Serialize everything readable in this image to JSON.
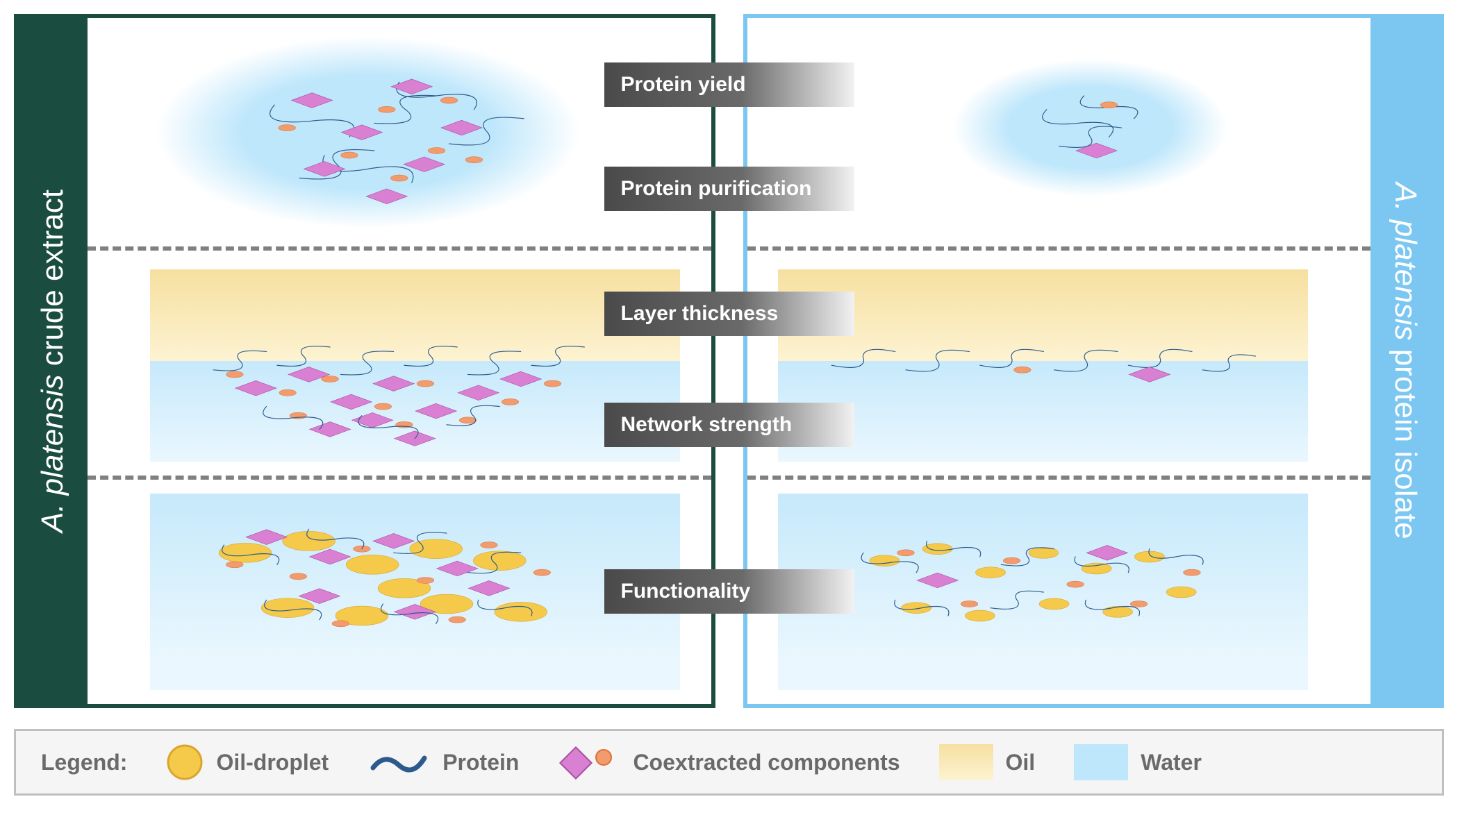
{
  "colors": {
    "left_border": "#1a4d3f",
    "right_border": "#7cc7f2",
    "water": "#bfe7fb",
    "water_light": "#eaf7fe",
    "oil_top": "#f6e0a0",
    "oil_bottom": "#fdf3d2",
    "protein": "#2d5a8c",
    "diamond_fill": "#d980d3",
    "diamond_stroke": "#a64fa0",
    "small_circle_fill": "#f29b6c",
    "small_circle_stroke": "#d9713a",
    "oil_droplet_fill": "#f5c94a",
    "oil_droplet_stroke": "#d9a52e",
    "label_grad_start": "#4a4a4a",
    "label_grad_mid": "#6a6a6a",
    "label_grad_end": "#f2f2f2",
    "divider": "#808080",
    "legend_bg": "#f5f5f5",
    "legend_border": "#bfbfbf",
    "legend_text": "#6a6a6a"
  },
  "left_panel": {
    "label_italic": "A. platensis",
    "label_plain": " crude extract"
  },
  "right_panel": {
    "label_italic": "A. platensis",
    "label_plain": " protein isolate"
  },
  "center_labels": [
    {
      "text": "Protein yield",
      "top_pct": 7
    },
    {
      "text": "Protein purification",
      "top_pct": 22
    },
    {
      "text": "Layer thickness",
      "top_pct": 40
    },
    {
      "text": "Network strength",
      "top_pct": 56
    },
    {
      "text": "Functionality",
      "top_pct": 80
    }
  ],
  "legend": {
    "title": "Legend:",
    "items": [
      {
        "key": "oil-droplet",
        "label": "Oil-droplet"
      },
      {
        "key": "protein",
        "label": "Protein"
      },
      {
        "key": "coextracted",
        "label": "Coextracted components"
      },
      {
        "key": "oil",
        "label": "Oil"
      },
      {
        "key": "water",
        "label": "Water"
      }
    ]
  },
  "shapes": {
    "protein_stroke_width": 7,
    "diamond_size": 42,
    "small_circle_r": 11,
    "oil_droplet_r": 38
  },
  "panels": {
    "left": {
      "top_ellipse": {
        "cx_pct": 45,
        "cy_pct": 50,
        "rx_pct": 34,
        "ry_pct": 42
      },
      "top_items": {
        "proteins": [
          [
            30,
            38,
            42,
            52
          ],
          [
            50,
            28,
            62,
            40
          ],
          [
            38,
            60,
            52,
            72
          ],
          [
            58,
            55,
            70,
            44
          ],
          [
            46,
            46,
            56,
            34
          ],
          [
            34,
            70,
            46,
            58
          ]
        ],
        "diamonds": [
          [
            36,
            36
          ],
          [
            52,
            30
          ],
          [
            44,
            50
          ],
          [
            60,
            48
          ],
          [
            38,
            66
          ],
          [
            54,
            64
          ],
          [
            48,
            78
          ]
        ],
        "small_circles": [
          [
            32,
            48
          ],
          [
            48,
            40
          ],
          [
            58,
            36
          ],
          [
            42,
            60
          ],
          [
            56,
            58
          ],
          [
            50,
            70
          ],
          [
            62,
            62
          ]
        ]
      },
      "middle": {
        "oil_h_pct": 40,
        "water_h_pct": 44,
        "interface_proteins": [
          [
            12,
            4,
            22,
            -4
          ],
          [
            24,
            2,
            34,
            -6
          ],
          [
            36,
            6,
            46,
            -4
          ],
          [
            48,
            2,
            58,
            -6
          ],
          [
            60,
            6,
            70,
            -4
          ],
          [
            72,
            2,
            82,
            -6
          ]
        ],
        "diamonds": [
          [
            20,
            12
          ],
          [
            30,
            6
          ],
          [
            38,
            18
          ],
          [
            46,
            10
          ],
          [
            54,
            22
          ],
          [
            62,
            14
          ],
          [
            70,
            8
          ],
          [
            34,
            30
          ],
          [
            50,
            34
          ],
          [
            42,
            26
          ]
        ],
        "small_circles": [
          [
            16,
            6
          ],
          [
            26,
            14
          ],
          [
            34,
            8
          ],
          [
            44,
            20
          ],
          [
            52,
            10
          ],
          [
            60,
            26
          ],
          [
            68,
            18
          ],
          [
            76,
            10
          ],
          [
            28,
            24
          ],
          [
            48,
            28
          ]
        ],
        "water_proteins": [
          [
            22,
            20,
            32,
            30
          ],
          [
            40,
            24,
            50,
            34
          ],
          [
            56,
            28,
            66,
            20
          ]
        ]
      },
      "bottom": {
        "oil_droplets": [
          [
            18,
            30
          ],
          [
            30,
            24
          ],
          [
            42,
            36
          ],
          [
            54,
            28
          ],
          [
            66,
            34
          ],
          [
            26,
            58
          ],
          [
            40,
            62
          ],
          [
            56,
            56
          ],
          [
            70,
            60
          ],
          [
            48,
            48
          ]
        ],
        "diamonds": [
          [
            22,
            22
          ],
          [
            34,
            32
          ],
          [
            46,
            24
          ],
          [
            58,
            38
          ],
          [
            32,
            52
          ],
          [
            50,
            60
          ],
          [
            64,
            48
          ]
        ],
        "small_circles": [
          [
            16,
            36
          ],
          [
            28,
            42
          ],
          [
            40,
            28
          ],
          [
            52,
            44
          ],
          [
            64,
            26
          ],
          [
            74,
            40
          ],
          [
            36,
            66
          ],
          [
            58,
            64
          ]
        ],
        "proteins": [
          [
            14,
            26,
            24,
            36
          ],
          [
            30,
            18,
            40,
            28
          ],
          [
            46,
            30,
            56,
            20
          ],
          [
            60,
            40,
            70,
            30
          ],
          [
            22,
            54,
            32,
            64
          ],
          [
            44,
            56,
            54,
            66
          ],
          [
            62,
            54,
            72,
            62
          ]
        ]
      }
    },
    "right": {
      "top_ellipse": {
        "cx_pct": 55,
        "cy_pct": 48,
        "rx_pct": 22,
        "ry_pct": 30
      },
      "top_items": {
        "proteins": [
          [
            48,
            40,
            58,
            52
          ],
          [
            54,
            34,
            62,
            44
          ],
          [
            50,
            56,
            60,
            48
          ]
        ],
        "diamonds": [
          [
            56,
            58
          ]
        ],
        "small_circles": [
          [
            58,
            38
          ]
        ]
      },
      "middle": {
        "oil_h_pct": 40,
        "water_h_pct": 44,
        "interface_proteins": [
          [
            10,
            2,
            22,
            -4
          ],
          [
            24,
            4,
            36,
            -4
          ],
          [
            38,
            2,
            50,
            -4
          ],
          [
            52,
            4,
            64,
            -4
          ],
          [
            66,
            2,
            78,
            -4
          ],
          [
            80,
            4,
            90,
            -2
          ]
        ],
        "diamonds": [
          [
            70,
            6
          ]
        ],
        "small_circles": [
          [
            46,
            4
          ]
        ],
        "water_proteins": []
      },
      "bottom": {
        "oil_droplets_small": [
          [
            20,
            34
          ],
          [
            30,
            28
          ],
          [
            40,
            40
          ],
          [
            50,
            30
          ],
          [
            60,
            38
          ],
          [
            70,
            32
          ],
          [
            26,
            58
          ],
          [
            38,
            62
          ],
          [
            52,
            56
          ],
          [
            64,
            60
          ],
          [
            76,
            50
          ]
        ],
        "diamonds": [
          [
            30,
            44
          ],
          [
            62,
            30
          ]
        ],
        "small_circles": [
          [
            24,
            30
          ],
          [
            44,
            34
          ],
          [
            56,
            46
          ],
          [
            68,
            56
          ],
          [
            36,
            56
          ],
          [
            78,
            40
          ]
        ],
        "proteins": [
          [
            16,
            30,
            26,
            40
          ],
          [
            28,
            24,
            38,
            32
          ],
          [
            42,
            36,
            52,
            28
          ],
          [
            56,
            32,
            66,
            40
          ],
          [
            70,
            28,
            80,
            36
          ],
          [
            22,
            54,
            32,
            62
          ],
          [
            40,
            58,
            50,
            50
          ],
          [
            58,
            54,
            68,
            62
          ]
        ]
      }
    }
  }
}
